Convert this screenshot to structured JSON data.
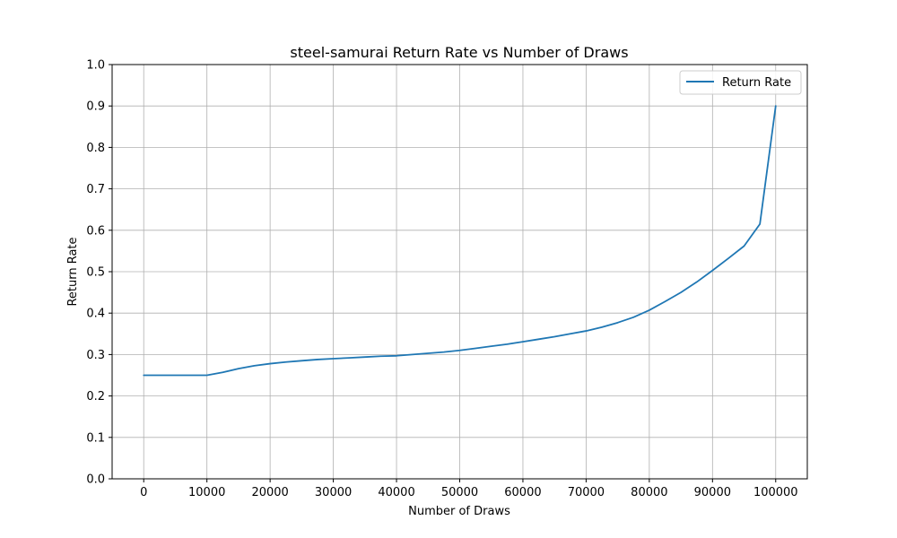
{
  "chart_data": {
    "type": "line",
    "title": "steel-samurai Return Rate vs Number of Draws",
    "xlabel": "Number of Draws",
    "ylabel": "Return Rate",
    "xlim": [
      -5000,
      105000
    ],
    "ylim": [
      0.0,
      1.0
    ],
    "x_ticks": [
      0,
      10000,
      20000,
      30000,
      40000,
      50000,
      60000,
      70000,
      80000,
      90000,
      100000
    ],
    "y_ticks": [
      0.0,
      0.1,
      0.2,
      0.3,
      0.4,
      0.5,
      0.6,
      0.7,
      0.8,
      0.9,
      1.0
    ],
    "x_tick_labels": [
      "0",
      "10000",
      "20000",
      "30000",
      "40000",
      "50000",
      "60000",
      "70000",
      "80000",
      "90000",
      "100000"
    ],
    "y_tick_labels": [
      "0.0",
      "0.1",
      "0.2",
      "0.3",
      "0.4",
      "0.5",
      "0.6",
      "0.7",
      "0.8",
      "0.9",
      "1.0"
    ],
    "grid": true,
    "legend": {
      "position": "top-right"
    },
    "series": [
      {
        "name": "Return Rate",
        "color": "#1f77b4",
        "x": [
          0,
          2500,
          5000,
          7500,
          10000,
          12500,
          15000,
          17500,
          20000,
          22500,
          25000,
          27500,
          30000,
          32500,
          35000,
          37500,
          40000,
          42500,
          45000,
          47500,
          50000,
          52500,
          55000,
          57500,
          60000,
          62500,
          65000,
          67500,
          70000,
          72500,
          75000,
          77500,
          80000,
          82500,
          85000,
          87500,
          90000,
          92500,
          95000,
          97500,
          100000
        ],
        "y": [
          0.25,
          0.25,
          0.25,
          0.25,
          0.25,
          0.257,
          0.266,
          0.273,
          0.278,
          0.282,
          0.285,
          0.288,
          0.29,
          0.292,
          0.294,
          0.296,
          0.297,
          0.3,
          0.303,
          0.306,
          0.31,
          0.315,
          0.32,
          0.325,
          0.331,
          0.337,
          0.343,
          0.35,
          0.357,
          0.366,
          0.377,
          0.39,
          0.407,
          0.428,
          0.45,
          0.475,
          0.503,
          0.532,
          0.562,
          0.615,
          0.9
        ]
      }
    ]
  }
}
